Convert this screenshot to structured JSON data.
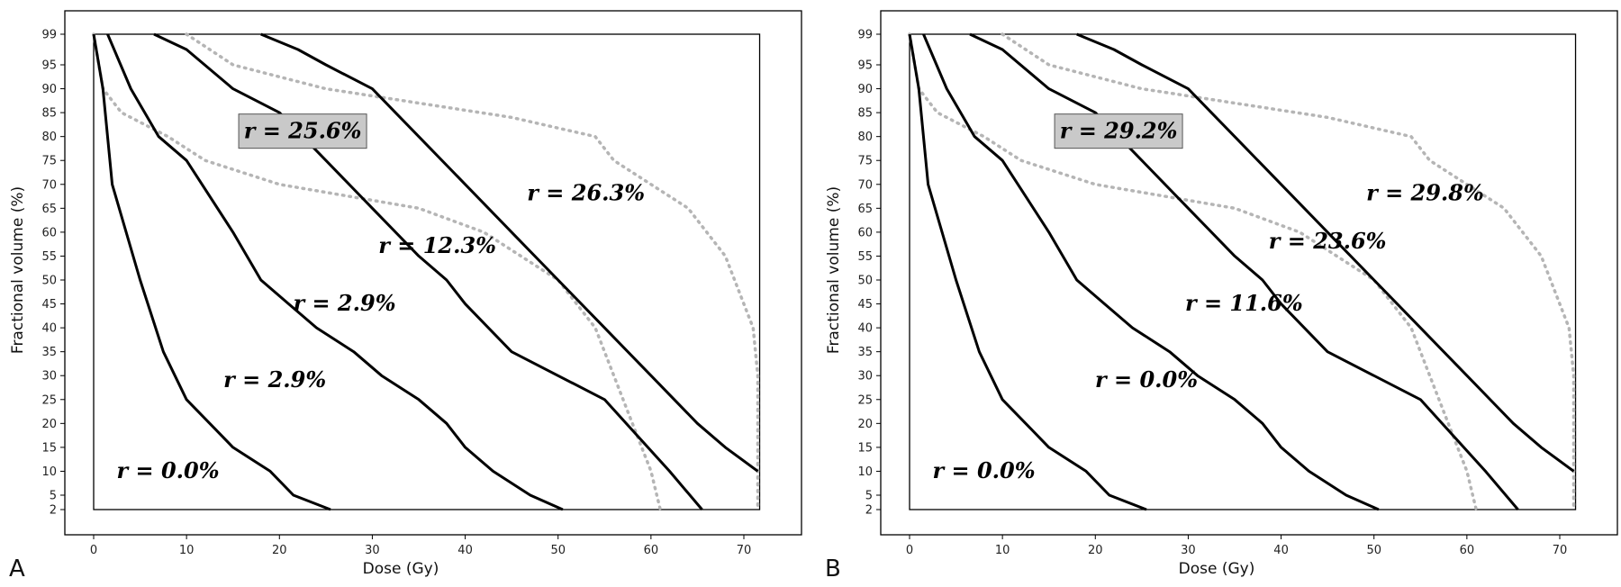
{
  "chart_data": [
    {
      "type": "line",
      "panel_label": "A",
      "xlabel": "Dose (Gy)",
      "ylabel": "Fractional volume (%)",
      "xlim": [
        -3.5,
        77
      ],
      "x_ticks": [
        0,
        10,
        20,
        30,
        40,
        50,
        60,
        70
      ],
      "y_ticks": [
        2,
        5,
        10,
        15,
        20,
        25,
        30,
        35,
        40,
        45,
        50,
        55,
        60,
        65,
        70,
        75,
        80,
        85,
        90,
        95,
        99
      ],
      "reference_curves": [
        {
          "name": "dotted-1",
          "style": "dotted",
          "points": [
            [
              0,
              99
            ],
            [
              1,
              90
            ],
            [
              3,
              85
            ],
            [
              8,
              80
            ],
            [
              12,
              75
            ],
            [
              20,
              70
            ],
            [
              35,
              65
            ],
            [
              42,
              60
            ],
            [
              50,
              50
            ],
            [
              54,
              40
            ],
            [
              56,
              30
            ],
            [
              58,
              20
            ],
            [
              60,
              10
            ],
            [
              61,
              2
            ]
          ]
        },
        {
          "name": "dotted-2",
          "style": "dotted",
          "points": [
            [
              10,
              99
            ],
            [
              15,
              95
            ],
            [
              25,
              90
            ],
            [
              35,
              87
            ],
            [
              45,
              84
            ],
            [
              54,
              80
            ],
            [
              56,
              75
            ],
            [
              60,
              70
            ],
            [
              64,
              65
            ],
            [
              68,
              55
            ],
            [
              70,
              45
            ],
            [
              71,
              40
            ],
            [
              71.5,
              30
            ],
            [
              71.5,
              2
            ]
          ]
        }
      ],
      "series": [
        {
          "name": "curve-1",
          "points": [
            [
              0,
              99
            ],
            [
              1,
              90
            ],
            [
              2,
              70
            ],
            [
              5,
              50
            ],
            [
              7.5,
              35
            ],
            [
              10,
              25
            ],
            [
              12.5,
              20
            ],
            [
              15,
              15
            ],
            [
              19,
              10
            ],
            [
              21.5,
              5
            ],
            [
              25.5,
              2
            ]
          ]
        },
        {
          "name": "curve-2",
          "points": [
            [
              1.5,
              99
            ],
            [
              4,
              90
            ],
            [
              7,
              80
            ],
            [
              10,
              75
            ],
            [
              15,
              60
            ],
            [
              18,
              50
            ],
            [
              21,
              45
            ],
            [
              24,
              40
            ],
            [
              28,
              35
            ],
            [
              31,
              30
            ],
            [
              35,
              25
            ],
            [
              38,
              20
            ],
            [
              40,
              15
            ],
            [
              43,
              10
            ],
            [
              47,
              5
            ],
            [
              50.5,
              2
            ]
          ]
        },
        {
          "name": "curve-3",
          "points": [
            [
              6.5,
              99
            ],
            [
              10,
              97
            ],
            [
              15,
              90
            ],
            [
              20,
              85
            ],
            [
              25,
              75
            ],
            [
              30,
              65
            ],
            [
              35,
              55
            ],
            [
              38,
              50
            ],
            [
              40,
              45
            ],
            [
              45,
              35
            ],
            [
              55,
              25
            ],
            [
              62,
              10
            ],
            [
              65.5,
              2
            ]
          ]
        },
        {
          "name": "curve-4",
          "points": [
            [
              18,
              99
            ],
            [
              22,
              97
            ],
            [
              25,
              95
            ],
            [
              30,
              90
            ],
            [
              35,
              80
            ],
            [
              40,
              70
            ],
            [
              45,
              60
            ],
            [
              50,
              50
            ],
            [
              55,
              40
            ],
            [
              60,
              30
            ],
            [
              65,
              20
            ],
            [
              68,
              15
            ],
            [
              71.5,
              10
            ]
          ]
        }
      ],
      "labels": [
        {
          "text": "r = 25.6%",
          "x": 22.5,
          "y": 80,
          "boxed": true
        },
        {
          "text": "r = 26.3%",
          "x": 53,
          "y": 67,
          "boxed": false
        },
        {
          "text": "r = 12.3%",
          "x": 37,
          "y": 56,
          "boxed": false
        },
        {
          "text": "r = 2.9%",
          "x": 27,
          "y": 44,
          "boxed": false
        },
        {
          "text": "r = 2.9%",
          "x": 19.5,
          "y": 28,
          "boxed": false
        },
        {
          "text": "r = 0.0%",
          "x": 8,
          "y": 9,
          "boxed": false
        }
      ]
    },
    {
      "type": "line",
      "panel_label": "B",
      "xlabel": "Dose (Gy)",
      "ylabel": "Fractional volume (%)",
      "xlim": [
        -3.5,
        77
      ],
      "x_ticks": [
        0,
        10,
        20,
        30,
        40,
        50,
        60,
        70
      ],
      "y_ticks": [
        2,
        5,
        10,
        15,
        20,
        25,
        30,
        35,
        40,
        45,
        50,
        55,
        60,
        65,
        70,
        75,
        80,
        85,
        90,
        95,
        99
      ],
      "reference_curves": [
        {
          "name": "dotted-1",
          "style": "dotted",
          "points": [
            [
              0,
              99
            ],
            [
              1,
              90
            ],
            [
              3,
              85
            ],
            [
              8,
              80
            ],
            [
              12,
              75
            ],
            [
              20,
              70
            ],
            [
              35,
              65
            ],
            [
              42,
              60
            ],
            [
              50,
              50
            ],
            [
              54,
              40
            ],
            [
              56,
              30
            ],
            [
              58,
              20
            ],
            [
              60,
              10
            ],
            [
              61,
              2
            ]
          ]
        },
        {
          "name": "dotted-2",
          "style": "dotted",
          "points": [
            [
              10,
              99
            ],
            [
              15,
              95
            ],
            [
              25,
              90
            ],
            [
              35,
              87
            ],
            [
              45,
              84
            ],
            [
              54,
              80
            ],
            [
              56,
              75
            ],
            [
              60,
              70
            ],
            [
              64,
              65
            ],
            [
              68,
              55
            ],
            [
              70,
              45
            ],
            [
              71,
              40
            ],
            [
              71.5,
              30
            ],
            [
              71.5,
              2
            ]
          ]
        }
      ],
      "series": [
        {
          "name": "curve-1",
          "points": [
            [
              0,
              99
            ],
            [
              1,
              90
            ],
            [
              2,
              70
            ],
            [
              5,
              50
            ],
            [
              7.5,
              35
            ],
            [
              10,
              25
            ],
            [
              12.5,
              20
            ],
            [
              15,
              15
            ],
            [
              19,
              10
            ],
            [
              21.5,
              5
            ],
            [
              25.5,
              2
            ]
          ]
        },
        {
          "name": "curve-2",
          "points": [
            [
              1.5,
              99
            ],
            [
              4,
              90
            ],
            [
              7,
              80
            ],
            [
              10,
              75
            ],
            [
              15,
              60
            ],
            [
              18,
              50
            ],
            [
              21,
              45
            ],
            [
              24,
              40
            ],
            [
              28,
              35
            ],
            [
              31,
              30
            ],
            [
              35,
              25
            ],
            [
              38,
              20
            ],
            [
              40,
              15
            ],
            [
              43,
              10
            ],
            [
              47,
              5
            ],
            [
              50.5,
              2
            ]
          ]
        },
        {
          "name": "curve-3",
          "points": [
            [
              6.5,
              99
            ],
            [
              10,
              97
            ],
            [
              15,
              90
            ],
            [
              20,
              85
            ],
            [
              25,
              75
            ],
            [
              30,
              65
            ],
            [
              35,
              55
            ],
            [
              38,
              50
            ],
            [
              40,
              45
            ],
            [
              45,
              35
            ],
            [
              55,
              25
            ],
            [
              62,
              10
            ],
            [
              65.5,
              2
            ]
          ]
        },
        {
          "name": "curve-4",
          "points": [
            [
              18,
              99
            ],
            [
              22,
              97
            ],
            [
              25,
              95
            ],
            [
              30,
              90
            ],
            [
              35,
              80
            ],
            [
              40,
              70
            ],
            [
              45,
              60
            ],
            [
              50,
              50
            ],
            [
              55,
              40
            ],
            [
              60,
              30
            ],
            [
              65,
              20
            ],
            [
              68,
              15
            ],
            [
              71.5,
              10
            ]
          ]
        }
      ],
      "labels": [
        {
          "text": "r = 29.2%",
          "x": 22.5,
          "y": 80,
          "boxed": true
        },
        {
          "text": "r = 29.8%",
          "x": 55.5,
          "y": 67,
          "boxed": false
        },
        {
          "text": "r = 23.6%",
          "x": 45,
          "y": 57,
          "boxed": false
        },
        {
          "text": "r = 11.6%",
          "x": 36,
          "y": 44,
          "boxed": false
        },
        {
          "text": "r = 0.0%",
          "x": 25.5,
          "y": 28,
          "boxed": false
        },
        {
          "text": "r = 0.0%",
          "x": 8,
          "y": 9,
          "boxed": false
        }
      ]
    }
  ]
}
